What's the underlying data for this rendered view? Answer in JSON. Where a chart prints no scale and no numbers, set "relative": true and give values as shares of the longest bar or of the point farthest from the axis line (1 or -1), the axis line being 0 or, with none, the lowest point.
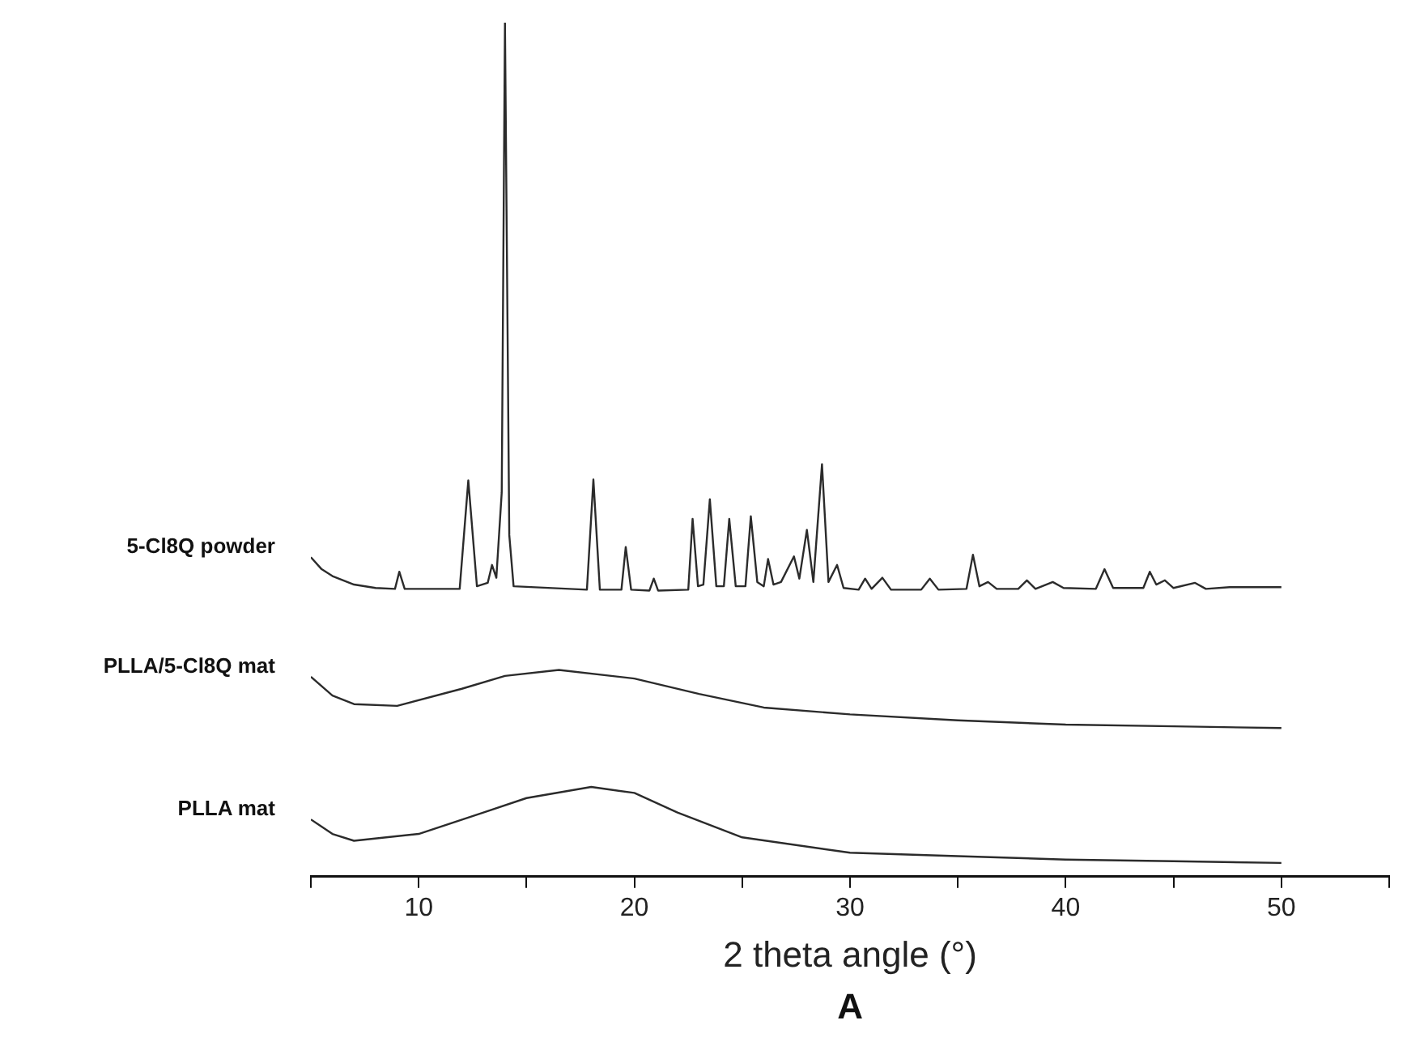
{
  "chart_data": {
    "type": "line",
    "relative": true,
    "xlabel": "2 theta angle (°)",
    "annotations": [
      "A"
    ],
    "xlim": [
      5,
      55
    ],
    "xticks": [
      {
        "value": 5,
        "label": null
      },
      10,
      {
        "value": 15,
        "label": null
      },
      20,
      {
        "value": 25,
        "label": null
      },
      30,
      {
        "value": 35,
        "label": null
      },
      40,
      {
        "value": 45,
        "label": null
      },
      50,
      {
        "value": 55,
        "label": null
      }
    ],
    "grid": false,
    "legend": false,
    "marker": "none",
    "line_style": "solid",
    "series": [
      {
        "name": "5-Cl8Q powder",
        "color": "#2b2b2b",
        "x": [
          5,
          5.5,
          6,
          7,
          8,
          8.9,
          9.1,
          9.35,
          11.9,
          12.3,
          12.7,
          13.2,
          13.4,
          13.6,
          13.85,
          14,
          14.2,
          14.4,
          17.8,
          18.1,
          18.4,
          19.4,
          19.6,
          19.85,
          20.7,
          20.9,
          21.1,
          22.5,
          22.7,
          22.95,
          23.2,
          23.5,
          23.8,
          24.15,
          24.4,
          24.7,
          25.15,
          25.4,
          25.7,
          26,
          26.2,
          26.45,
          26.8,
          27.4,
          27.65,
          28,
          28.3,
          28.7,
          29,
          29.4,
          29.7,
          30.4,
          30.7,
          31,
          31.5,
          31.9,
          33.3,
          33.7,
          34.1,
          35.4,
          35.7,
          36,
          36.4,
          36.8,
          37.8,
          38.2,
          38.6,
          39.4,
          39.9,
          41.4,
          41.8,
          42.2,
          43.6,
          43.9,
          44.2,
          44.6,
          45,
          46,
          46.5,
          47.6,
          48.5,
          50
        ],
        "values": [
          0.374,
          0.36,
          0.352,
          0.342,
          0.338,
          0.337,
          0.357,
          0.337,
          0.337,
          0.464,
          0.34,
          0.344,
          0.365,
          0.35,
          0.45,
          1,
          0.4,
          0.34,
          0.336,
          0.465,
          0.336,
          0.336,
          0.386,
          0.336,
          0.335,
          0.349,
          0.335,
          0.336,
          0.419,
          0.34,
          0.342,
          0.442,
          0.34,
          0.34,
          0.419,
          0.34,
          0.34,
          0.422,
          0.345,
          0.34,
          0.372,
          0.342,
          0.345,
          0.375,
          0.349,
          0.406,
          0.345,
          0.483,
          0.345,
          0.365,
          0.338,
          0.336,
          0.349,
          0.337,
          0.35,
          0.336,
          0.336,
          0.349,
          0.336,
          0.337,
          0.377,
          0.34,
          0.345,
          0.337,
          0.337,
          0.347,
          0.337,
          0.345,
          0.338,
          0.337,
          0.36,
          0.338,
          0.338,
          0.357,
          0.342,
          0.347,
          0.338,
          0.344,
          0.337,
          0.339,
          0.339,
          0.339
        ]
      },
      {
        "name": "PLLA/5-Cl8Q mat",
        "color": "#2b2b2b",
        "x": [
          5,
          6,
          7,
          9,
          12,
          14,
          16.5,
          20,
          23,
          26,
          30,
          35,
          40,
          45,
          50
        ],
        "values": [
          0.234,
          0.212,
          0.202,
          0.2,
          0.22,
          0.235,
          0.242,
          0.232,
          0.214,
          0.198,
          0.19,
          0.183,
          0.178,
          0.176,
          0.174
        ]
      },
      {
        "name": "PLLA mat",
        "color": "#2b2b2b",
        "x": [
          5,
          6,
          7,
          10,
          13,
          15,
          18,
          20,
          22,
          25,
          30,
          35,
          40,
          45,
          50
        ],
        "values": [
          0.067,
          0.05,
          0.042,
          0.05,
          0.075,
          0.092,
          0.105,
          0.098,
          0.075,
          0.046,
          0.028,
          0.024,
          0.02,
          0.018,
          0.016
        ]
      }
    ]
  }
}
